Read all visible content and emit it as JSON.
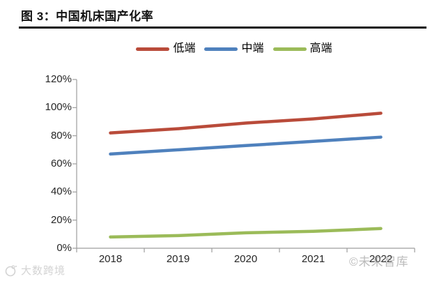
{
  "header": {
    "title": "图 3：中国机床国产化率"
  },
  "watermarks": {
    "chart_right": "©未来智库",
    "bottom_left": "大数跨境"
  },
  "chart_data": {
    "type": "line",
    "title": "中国机床国产化率",
    "categories": [
      "2018",
      "2019",
      "2020",
      "2021",
      "2022"
    ],
    "series": [
      {
        "name": "低端",
        "color": "#B94B3A",
        "values": [
          82,
          85,
          89,
          92,
          96
        ]
      },
      {
        "name": "中端",
        "color": "#4F81BD",
        "values": [
          67,
          70,
          73,
          76,
          79
        ]
      },
      {
        "name": "高端",
        "color": "#9BBB59",
        "values": [
          8,
          9,
          11,
          12,
          14
        ]
      }
    ],
    "ylim": [
      0,
      120
    ],
    "ytick_step": 20,
    "ytick_labels": [
      "0%",
      "20%",
      "40%",
      "60%",
      "80%",
      "100%",
      "120%"
    ],
    "xlabel": "",
    "ylabel": "",
    "grid": false,
    "legend_position": "top-center",
    "axis_color": "#9d9d9d",
    "line_width": 4.5
  }
}
